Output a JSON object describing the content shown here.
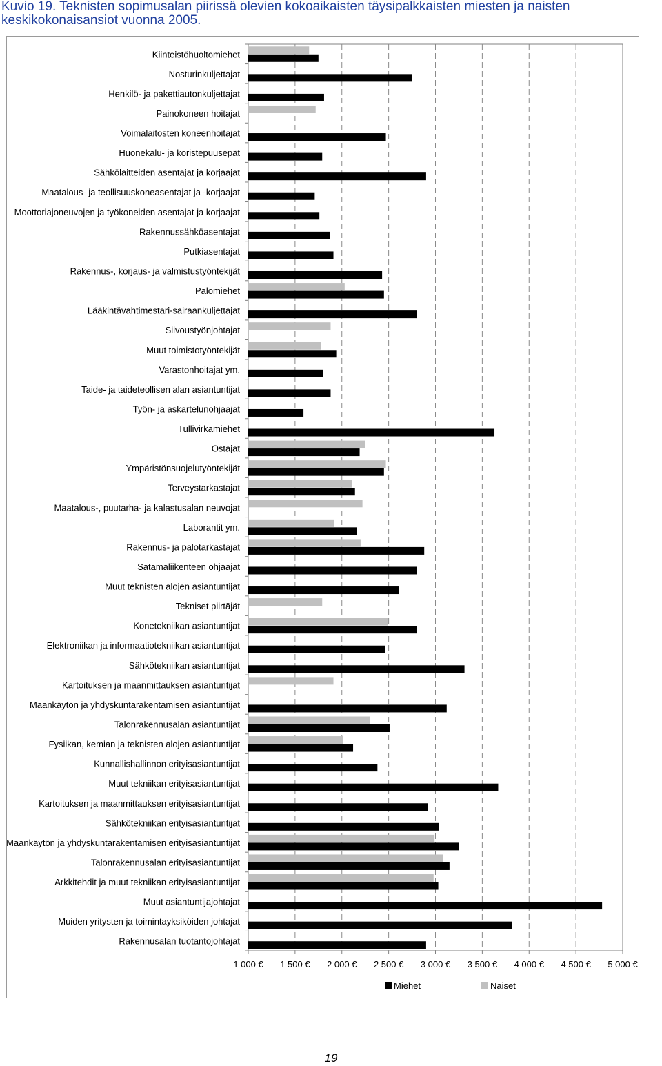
{
  "page": {
    "title": "Kuvio 19. Teknisten sopimusalan piirissä olevien kokoaikaisten täysipalkkaisten miesten ja naisten keskikokonaisansiot vuonna 2005.",
    "page_number": "19"
  },
  "chart_data": {
    "type": "bar",
    "orientation": "horizontal",
    "title": "Kuvio 19. Teknisten sopimusalan piirissä olevien kokoaikaisten täysipalkkaisten miesten ja naisten keskikokonaisansiot vuonna 2005.",
    "xlabel": "",
    "ylabel": "",
    "xlim": [
      1000,
      5000
    ],
    "x_ticks": [
      1000,
      1500,
      2000,
      2500,
      3000,
      3500,
      4000,
      4500,
      5000
    ],
    "x_tick_labels": [
      "1 000 €",
      "1 500 €",
      "2 000 €",
      "2 500 €",
      "3 000 €",
      "3 500 €",
      "4 000 €",
      "4 500 €",
      "5 000 €"
    ],
    "grid": "vertical dashed",
    "legend_position": "bottom",
    "colors": {
      "Miehet": "#000000",
      "Naiset": "#c0c0c0"
    },
    "categories": [
      "Kiinteistöhuoltomiehet",
      "Nosturinkuljettajat",
      "Henkilö- ja pakettiautonkuljettajat",
      "Painokoneen hoitajat",
      "Voimalaitosten koneenhoitajat",
      "Huonekalu- ja koristepuusepät",
      "Sähkölaitteiden asentajat ja korjaajat",
      "Maatalous- ja teollisuuskoneasentajat ja -korjaajat",
      "Moottoriajoneuvojen ja työkoneiden asentajat ja korjaajat",
      "Rakennussähköasentajat",
      "Putkiasentajat",
      "Rakennus-, korjaus- ja valmistustyöntekijät",
      "Palomiehet",
      "Lääkintävahtimestari-sairaankuljettajat",
      "Siivoustyönjohtajat",
      "Muut toimistotyöntekijät",
      "Varastonhoitajat ym.",
      "Taide- ja taideteollisen alan asiantuntijat",
      "Työn- ja askartelunohjaajat",
      "Tullivirkamiehet",
      "Ostajat",
      "Ympäristönsuojelutyöntekijät",
      "Terveystarkastajat",
      "Maatalous-, puutarha- ja kalastusalan neuvojat",
      "Laborantit ym.",
      "Rakennus- ja palotarkastajat",
      "Satamaliikenteen ohjaajat",
      "Muut teknisten alojen asiantuntijat",
      "Tekniset piirtäjät",
      "Konetekniikan asiantuntijat",
      "Elektroniikan ja informaatiotekniikan asiantuntijat",
      "Sähkötekniikan asiantuntijat",
      "Kartoituksen ja maanmittauksen asiantuntijat",
      "Maankäytön ja yhdyskuntarakentamisen asiantuntijat",
      "Talonrakennusalan asiantuntijat",
      "Fysiikan, kemian ja teknisten alojen asiantuntijat",
      "Kunnallishallinnon erityisasiantuntijat",
      "Muut tekniikan erityisasiantuntijat",
      "Kartoituksen ja maanmittauksen erityisasiantuntijat",
      "Sähkötekniikan erityisasiantuntijat",
      "Maankäytön ja yhdyskuntarakentamisen erityisasiantuntijat",
      "Talonrakennusalan erityisasiantuntijat",
      "Arkkitehdit ja muut tekniikan erityisasiantuntijat",
      "Muut asiantuntijajohtajat",
      "Muiden yritysten ja toimintayksiköiden johtajat",
      "Rakennusalan tuotantojohtajat"
    ],
    "series": [
      {
        "name": "Naiset",
        "values": [
          1650,
          null,
          null,
          1720,
          null,
          null,
          null,
          null,
          null,
          null,
          null,
          null,
          2030,
          null,
          1880,
          1780,
          null,
          null,
          null,
          null,
          2250,
          2470,
          2110,
          2220,
          1920,
          2200,
          null,
          null,
          1790,
          2490,
          null,
          null,
          1910,
          null,
          2300,
          2010,
          null,
          null,
          null,
          null,
          2990,
          3080,
          2980,
          null,
          null,
          null
        ]
      },
      {
        "name": "Miehet",
        "values": [
          1750,
          2750,
          1810,
          null,
          2470,
          1790,
          2900,
          1710,
          1760,
          1870,
          1910,
          2430,
          2450,
          2800,
          null,
          1940,
          1800,
          1880,
          1590,
          3630,
          2190,
          2450,
          2140,
          null,
          2160,
          2880,
          2800,
          2610,
          null,
          2800,
          2460,
          3310,
          null,
          3120,
          2510,
          2120,
          2380,
          3670,
          2920,
          3040,
          3250,
          3150,
          3030,
          4780,
          3820,
          2900
        ]
      }
    ]
  },
  "legend": {
    "items": [
      {
        "label": "Miehet",
        "color": "#000000"
      },
      {
        "label": "Naiset",
        "color": "#c0c0c0"
      }
    ]
  }
}
